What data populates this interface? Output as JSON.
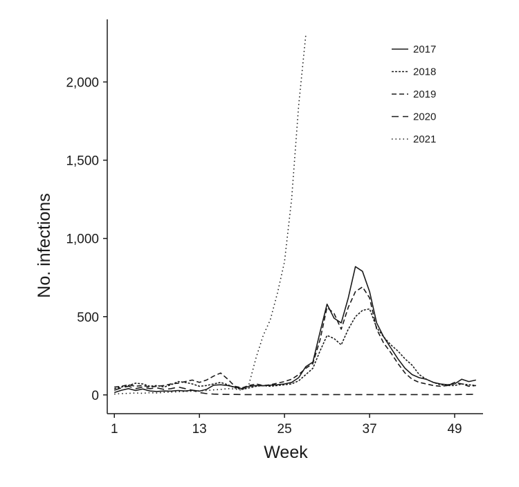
{
  "colors": {
    "ink": "#1a1a1a"
  },
  "chart_data": {
    "type": "line",
    "xlabel": "Week",
    "ylabel": "No. infections",
    "xlim": [
      0,
      53
    ],
    "ylim": [
      -120,
      2400
    ],
    "xticks": [
      1,
      13,
      25,
      37,
      49
    ],
    "xtick_labels": [
      "1",
      "13",
      "25",
      "37",
      "49"
    ],
    "yticks": [
      0,
      500,
      1000,
      1500,
      2000
    ],
    "ytick_labels": [
      "0",
      "500",
      "1,000",
      "1,500",
      "2,000"
    ],
    "grid": false,
    "legend_position": "top-right",
    "series": [
      {
        "name": "2017",
        "dash": "solid",
        "x": [
          1,
          2,
          3,
          4,
          5,
          6,
          7,
          8,
          9,
          10,
          11,
          12,
          13,
          14,
          15,
          16,
          17,
          18,
          19,
          20,
          21,
          22,
          23,
          24,
          25,
          26,
          27,
          28,
          29,
          30,
          31,
          32,
          33,
          34,
          35,
          36,
          37,
          38,
          39,
          40,
          41,
          42,
          43,
          44,
          45,
          46,
          47,
          48,
          49,
          50,
          51,
          52
        ],
        "y": [
          15,
          30,
          40,
          28,
          38,
          25,
          22,
          25,
          24,
          28,
          25,
          30,
          24,
          35,
          62,
          65,
          60,
          50,
          40,
          55,
          60,
          58,
          62,
          65,
          70,
          80,
          110,
          180,
          210,
          400,
          580,
          490,
          460,
          620,
          820,
          790,
          660,
          460,
          370,
          300,
          230,
          170,
          130,
          110,
          100,
          80,
          70,
          65,
          70,
          100,
          85,
          95
        ]
      },
      {
        "name": "2018",
        "dash": "dense-dot",
        "x": [
          1,
          2,
          3,
          4,
          5,
          6,
          7,
          8,
          9,
          10,
          11,
          12,
          13,
          14,
          15,
          16,
          17,
          18,
          19,
          20,
          21,
          22,
          23,
          24,
          25,
          26,
          27,
          28,
          29,
          30,
          31,
          32,
          33,
          34,
          35,
          36,
          37,
          38,
          39,
          40,
          41,
          42,
          43,
          44,
          45,
          46,
          47,
          48,
          49,
          50,
          51,
          52
        ],
        "y": [
          40,
          50,
          60,
          75,
          70,
          55,
          60,
          50,
          65,
          85,
          80,
          70,
          55,
          60,
          70,
          80,
          65,
          45,
          35,
          45,
          55,
          60,
          55,
          60,
          65,
          70,
          90,
          130,
          170,
          280,
          380,
          360,
          320,
          420,
          500,
          540,
          550,
          430,
          370,
          320,
          280,
          230,
          190,
          130,
          100,
          80,
          65,
          60,
          60,
          70,
          65,
          60
        ]
      },
      {
        "name": "2019",
        "dash": "medium-dash",
        "x": [
          1,
          2,
          3,
          4,
          5,
          6,
          7,
          8,
          9,
          10,
          11,
          12,
          13,
          14,
          15,
          16,
          17,
          18,
          19,
          20,
          21,
          22,
          23,
          24,
          25,
          26,
          27,
          28,
          29,
          30,
          31,
          32,
          33,
          34,
          35,
          36,
          37,
          38,
          39,
          40,
          41,
          42,
          43,
          44,
          45,
          46,
          47,
          48,
          49,
          50,
          51,
          52
        ],
        "y": [
          50,
          55,
          65,
          55,
          60,
          50,
          55,
          60,
          70,
          75,
          85,
          95,
          80,
          95,
          120,
          140,
          100,
          55,
          45,
          60,
          70,
          60,
          65,
          75,
          85,
          100,
          130,
          170,
          200,
          350,
          560,
          520,
          420,
          560,
          660,
          690,
          620,
          420,
          330,
          270,
          200,
          140,
          100,
          80,
          70,
          60,
          55,
          60,
          80,
          70,
          55,
          60
        ]
      },
      {
        "name": "2020",
        "dash": "long-dash",
        "x": [
          1,
          2,
          3,
          4,
          5,
          6,
          7,
          8,
          9,
          10,
          11,
          12,
          13,
          14,
          15,
          16,
          17,
          18,
          19,
          20,
          21,
          22,
          23,
          24,
          25,
          26,
          27,
          28,
          29,
          30,
          31,
          32,
          33,
          34,
          35,
          36,
          37,
          38,
          39,
          40,
          41,
          42,
          43,
          44,
          45,
          46,
          47,
          48,
          49,
          50,
          51,
          52
        ],
        "y": [
          30,
          45,
          55,
          40,
          50,
          40,
          45,
          35,
          40,
          50,
          40,
          30,
          15,
          8,
          5,
          4,
          3,
          3,
          2,
          2,
          2,
          2,
          2,
          2,
          2,
          2,
          2,
          2,
          2,
          2,
          2,
          2,
          2,
          2,
          2,
          2,
          2,
          2,
          2,
          2,
          2,
          2,
          2,
          2,
          2,
          2,
          2,
          2,
          2,
          3,
          3,
          4
        ]
      },
      {
        "name": "2021",
        "dash": "sparse-dot",
        "x": [
          1,
          2,
          3,
          4,
          5,
          6,
          7,
          8,
          9,
          10,
          11,
          12,
          13,
          14,
          15,
          16,
          17,
          18,
          19,
          20,
          21,
          22,
          23,
          24,
          25,
          26,
          27,
          28
        ],
        "y": [
          5,
          8,
          10,
          12,
          10,
          14,
          12,
          16,
          18,
          20,
          22,
          24,
          26,
          28,
          32,
          35,
          40,
          38,
          30,
          70,
          240,
          380,
          480,
          650,
          850,
          1250,
          1850,
          2300
        ]
      }
    ]
  }
}
